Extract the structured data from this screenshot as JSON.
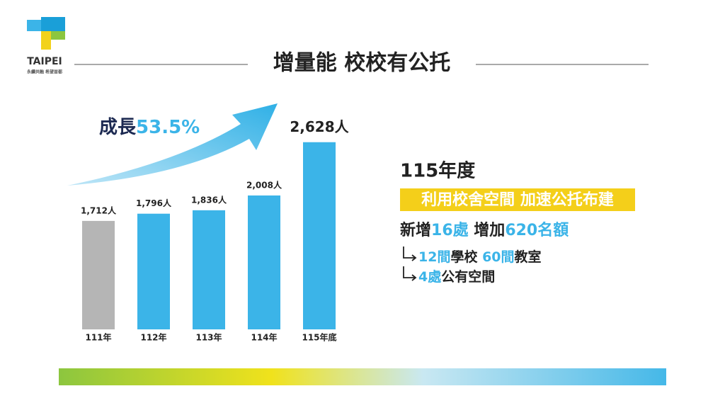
{
  "logo": {
    "name": "TAIPEI",
    "tagline": "永續共融 希望首都"
  },
  "header": {
    "title": "增量能 校校有公托"
  },
  "chart_data": {
    "type": "bar",
    "categories": [
      "111年",
      "112年",
      "113年",
      "114年",
      "115年底"
    ],
    "values": [
      1712,
      1796,
      1836,
      2008,
      2628
    ],
    "value_labels": [
      "1,712人",
      "1,796人",
      "1,836人",
      "2,008人",
      "2,628人"
    ],
    "colors": [
      "#b5b5b5",
      "#3bb4e8",
      "#3bb4e8",
      "#3bb4e8",
      "#3bb4e8"
    ],
    "ylim": [
      450,
      2700
    ],
    "annotation": {
      "label": "成長",
      "value_label": "53.5%"
    }
  },
  "panel": {
    "heading": "115年度",
    "banner": "利用校舍空間 加速公托布建",
    "summary": [
      "新增",
      "16處",
      " 增加",
      "620名額"
    ],
    "items": [
      [
        "12間",
        "學校 ",
        "60間",
        "教室"
      ],
      [
        "4處",
        "公有空間"
      ]
    ]
  }
}
